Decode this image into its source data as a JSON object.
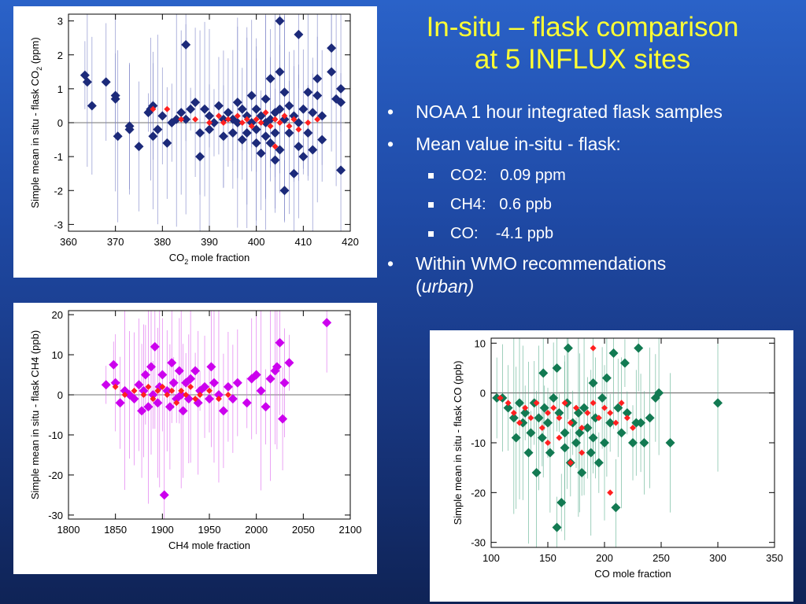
{
  "slide": {
    "title_line1": "In-situ – flask comparison",
    "title_line2": "at 5 INFLUX sites",
    "bullets": [
      "NOAA 1 hour integrated flask samples",
      "Mean value in-situ - flask:"
    ],
    "sub_bullets": [
      "CO2:   0.09 ppm",
      "CH4:   0.6 ppb",
      "CO:    -4.1 ppb"
    ],
    "bullet3": "Within WMO recommendations",
    "bullet3_italic": "urban)",
    "bullet3_paren": "(",
    "title_color": "#ffff33"
  },
  "chart_data": [
    {
      "type": "scatter",
      "ylabel_prefix": "Simple mean in situ - flask CO",
      "ylabel_sub": "2",
      "ylabel_suffix": " (ppm)",
      "xlabel_prefix": "CO",
      "xlabel_sub": "2",
      "xlabel_suffix": " mole fraction",
      "xlim": [
        360,
        420
      ],
      "ylim": [
        -3.2,
        3.2
      ],
      "xticks": [
        360,
        370,
        380,
        390,
        400,
        410,
        420
      ],
      "yticks": [
        -3,
        -2,
        -1,
        0,
        1,
        2,
        3
      ],
      "zero_line": true,
      "colors": {
        "marker": "#1c2a7a",
        "highlight": "#ff2020",
        "errorbar": "#7d84c8"
      },
      "points": [
        [
          363.5,
          1.4
        ],
        [
          364,
          1.2
        ],
        [
          365,
          0.5
        ],
        [
          368,
          1.2
        ],
        [
          370,
          0.8
        ],
        [
          370,
          0.7
        ],
        [
          370.5,
          -0.4
        ],
        [
          373,
          -0.1
        ],
        [
          373,
          -0.2
        ],
        [
          375,
          -0.7
        ],
        [
          377,
          0.3
        ],
        [
          377.5,
          0.4
        ],
        [
          378,
          -0.4
        ],
        [
          378,
          0.5
        ],
        [
          379,
          -0.2
        ],
        [
          380,
          0.2
        ],
        [
          381,
          -0.6
        ],
        [
          382,
          0
        ],
        [
          383,
          0.1
        ],
        [
          384,
          0.3
        ],
        [
          385,
          2.3
        ],
        [
          385,
          0.1
        ],
        [
          386,
          0.4
        ],
        [
          387,
          0.6
        ],
        [
          388,
          -0.3
        ],
        [
          388,
          -1
        ],
        [
          389,
          0.4
        ],
        [
          390,
          0.2
        ],
        [
          390,
          -0.2
        ],
        [
          391,
          0
        ],
        [
          392,
          0.5
        ],
        [
          393,
          0.1
        ],
        [
          393,
          -0.4
        ],
        [
          394,
          0.3
        ],
        [
          395,
          0.1
        ],
        [
          395,
          -0.3
        ],
        [
          396,
          0.6
        ],
        [
          396,
          0
        ],
        [
          397,
          -0.5
        ],
        [
          397,
          0.4
        ],
        [
          398,
          0.2
        ],
        [
          398,
          -0.3
        ],
        [
          399,
          0.8
        ],
        [
          399,
          0
        ],
        [
          400,
          0.4
        ],
        [
          400,
          -0.2
        ],
        [
          400,
          -0.6
        ],
        [
          401,
          0.2
        ],
        [
          401,
          -0.9
        ],
        [
          402,
          0
        ],
        [
          402,
          0.7
        ],
        [
          402,
          -0.4
        ],
        [
          403,
          1.3
        ],
        [
          403,
          0.1
        ],
        [
          403,
          -0.6
        ],
        [
          404,
          0.3
        ],
        [
          404,
          -0.3
        ],
        [
          404,
          -1.1
        ],
        [
          405,
          3
        ],
        [
          405,
          1.5
        ],
        [
          405,
          0.4
        ],
        [
          405,
          -0.8
        ],
        [
          406,
          0.1
        ],
        [
          406,
          0.9
        ],
        [
          406,
          -2
        ],
        [
          407,
          -0.3
        ],
        [
          407,
          0.5
        ],
        [
          408,
          -1.5
        ],
        [
          408,
          0.2
        ],
        [
          409,
          2.6
        ],
        [
          409,
          -0.7
        ],
        [
          409,
          0
        ],
        [
          410,
          0.4
        ],
        [
          410,
          -1
        ],
        [
          411,
          0.9
        ],
        [
          411,
          -0.3
        ],
        [
          412,
          0.3
        ],
        [
          412,
          -0.8
        ],
        [
          413,
          0.8
        ],
        [
          413,
          1.3
        ],
        [
          414,
          -0.5
        ],
        [
          414,
          0.2
        ],
        [
          416,
          2.2
        ],
        [
          416,
          1.5
        ],
        [
          417,
          0.7
        ],
        [
          418,
          1
        ],
        [
          418,
          -1.4
        ],
        [
          418,
          0.6
        ]
      ],
      "highlights": [
        [
          378,
          0.4
        ],
        [
          381,
          0.4
        ],
        [
          384,
          0.1
        ],
        [
          387,
          0.1
        ],
        [
          390,
          0
        ],
        [
          392,
          0.2
        ],
        [
          394,
          0.1
        ],
        [
          396,
          0.2
        ],
        [
          398,
          0.1
        ],
        [
          399,
          -0.1
        ],
        [
          400,
          0.1
        ],
        [
          401,
          0
        ],
        [
          402,
          0.3
        ],
        [
          403,
          -0.1
        ],
        [
          404,
          0.1
        ],
        [
          404,
          -0.7
        ],
        [
          405,
          0
        ],
        [
          406,
          0.2
        ],
        [
          407,
          -0.1
        ],
        [
          408,
          0.1
        ],
        [
          409,
          -0.2
        ],
        [
          411,
          0
        ],
        [
          413,
          0.1
        ],
        [
          393,
          0
        ],
        [
          397,
          0
        ]
      ]
    },
    {
      "type": "scatter",
      "ylabel": "Simple mean in situ - flask CH4 (ppb)",
      "xlabel": "CH4 mole fraction",
      "xlim": [
        1800,
        2100
      ],
      "ylim": [
        -31,
        21
      ],
      "xticks": [
        1800,
        1850,
        1900,
        1950,
        2000,
        2050,
        2100
      ],
      "yticks": [
        -30,
        -20,
        -10,
        0,
        10,
        20
      ],
      "zero_line": true,
      "colors": {
        "marker": "#cc00ee",
        "highlight": "#ff2020",
        "errorbar": "#dd66ee"
      },
      "points": [
        [
          1840,
          2.5
        ],
        [
          1848,
          7.5
        ],
        [
          1850,
          3
        ],
        [
          1855,
          -2
        ],
        [
          1860,
          1
        ],
        [
          1865,
          0
        ],
        [
          1870,
          -1
        ],
        [
          1875,
          2.5
        ],
        [
          1878,
          -4
        ],
        [
          1880,
          1
        ],
        [
          1882,
          5
        ],
        [
          1885,
          -3
        ],
        [
          1888,
          7
        ],
        [
          1890,
          0
        ],
        [
          1892,
          12
        ],
        [
          1895,
          -2
        ],
        [
          1897,
          2
        ],
        [
          1900,
          5
        ],
        [
          1902,
          -25
        ],
        [
          1905,
          1
        ],
        [
          1908,
          -3
        ],
        [
          1910,
          8
        ],
        [
          1912,
          3
        ],
        [
          1915,
          -1
        ],
        [
          1918,
          6
        ],
        [
          1920,
          0
        ],
        [
          1922,
          -4
        ],
        [
          1925,
          3
        ],
        [
          1928,
          -1
        ],
        [
          1930,
          4
        ],
        [
          1935,
          6
        ],
        [
          1938,
          -2
        ],
        [
          1940,
          1
        ],
        [
          1945,
          2
        ],
        [
          1950,
          -1
        ],
        [
          1952,
          7
        ],
        [
          1955,
          3
        ],
        [
          1960,
          0
        ],
        [
          1965,
          -4
        ],
        [
          1970,
          2
        ],
        [
          1975,
          -1
        ],
        [
          1980,
          3
        ],
        [
          1990,
          -2
        ],
        [
          1995,
          4
        ],
        [
          2000,
          5
        ],
        [
          2005,
          1
        ],
        [
          2010,
          -3
        ],
        [
          2015,
          4
        ],
        [
          2020,
          6
        ],
        [
          2022,
          7
        ],
        [
          2025,
          13
        ],
        [
          2028,
          -6
        ],
        [
          2030,
          3
        ],
        [
          2035,
          8
        ],
        [
          2075,
          18
        ]
      ],
      "highlights": [
        [
          1850,
          2
        ],
        [
          1860,
          0
        ],
        [
          1870,
          1
        ],
        [
          1880,
          0
        ],
        [
          1885,
          2
        ],
        [
          1890,
          -1
        ],
        [
          1895,
          1
        ],
        [
          1900,
          2
        ],
        [
          1905,
          0
        ],
        [
          1910,
          1
        ],
        [
          1915,
          -2
        ],
        [
          1920,
          1
        ],
        [
          1925,
          0
        ],
        [
          1930,
          2
        ],
        [
          1935,
          -1
        ],
        [
          1940,
          0
        ],
        [
          1950,
          1
        ],
        [
          1960,
          -1
        ],
        [
          1970,
          0
        ]
      ]
    },
    {
      "type": "scatter",
      "ylabel": "Simple mean in situ - flask CO (ppb)",
      "xlabel": "CO mole fraction",
      "xlim": [
        100,
        350
      ],
      "ylim": [
        -31,
        11
      ],
      "xticks": [
        100,
        150,
        200,
        250,
        300,
        350
      ],
      "yticks": [
        -30,
        -20,
        -10,
        0,
        10
      ],
      "zero_line": true,
      "colors": {
        "marker": "#127a52",
        "highlight": "#ff2020",
        "errorbar": "#5fb191"
      },
      "points": [
        [
          105,
          -1
        ],
        [
          110,
          -1
        ],
        [
          115,
          -3
        ],
        [
          120,
          -5
        ],
        [
          122,
          -9
        ],
        [
          125,
          -2
        ],
        [
          128,
          -6
        ],
        [
          130,
          -4
        ],
        [
          133,
          -12
        ],
        [
          135,
          -8
        ],
        [
          138,
          -2
        ],
        [
          140,
          -16
        ],
        [
          142,
          -5
        ],
        [
          145,
          -9
        ],
        [
          147,
          -3
        ],
        [
          150,
          -6
        ],
        [
          152,
          -12
        ],
        [
          155,
          -1
        ],
        [
          158,
          -27
        ],
        [
          160,
          -4
        ],
        [
          162,
          -22
        ],
        [
          165,
          -8
        ],
        [
          167,
          -2
        ],
        [
          170,
          -14
        ],
        [
          172,
          -6
        ],
        [
          175,
          -10
        ],
        [
          177,
          -4
        ],
        [
          180,
          -16
        ],
        [
          182,
          -3
        ],
        [
          185,
          -7
        ],
        [
          188,
          -12
        ],
        [
          190,
          2
        ],
        [
          192,
          -5
        ],
        [
          195,
          -14
        ],
        [
          198,
          -1
        ],
        [
          200,
          -10
        ],
        [
          202,
          3
        ],
        [
          205,
          -6
        ],
        [
          208,
          8
        ],
        [
          210,
          -23
        ],
        [
          212,
          -3
        ],
        [
          215,
          -8
        ],
        [
          218,
          6
        ],
        [
          220,
          -4
        ],
        [
          225,
          -10
        ],
        [
          228,
          -6
        ],
        [
          230,
          9
        ],
        [
          232,
          -6
        ],
        [
          235,
          -10
        ],
        [
          240,
          -5
        ],
        [
          245,
          -1
        ],
        [
          248,
          0
        ],
        [
          258,
          -10
        ],
        [
          300,
          -2
        ],
        [
          165,
          -11
        ],
        [
          178,
          -8
        ],
        [
          190,
          -9
        ],
        [
          168,
          9
        ],
        [
          158,
          5
        ],
        [
          146,
          4
        ]
      ],
      "highlights": [
        [
          108,
          -1
        ],
        [
          115,
          -2
        ],
        [
          120,
          -4
        ],
        [
          125,
          -6
        ],
        [
          130,
          -3
        ],
        [
          135,
          -5
        ],
        [
          140,
          -2
        ],
        [
          145,
          -7
        ],
        [
          150,
          -4
        ],
        [
          155,
          -3
        ],
        [
          160,
          -5
        ],
        [
          165,
          -2
        ],
        [
          170,
          -6
        ],
        [
          175,
          -3
        ],
        [
          180,
          -7
        ],
        [
          185,
          -4
        ],
        [
          190,
          -2
        ],
        [
          195,
          -5
        ],
        [
          200,
          -3
        ],
        [
          205,
          -4
        ],
        [
          210,
          -6
        ],
        [
          215,
          -2
        ],
        [
          220,
          -5
        ],
        [
          225,
          -7
        ],
        [
          150,
          -10
        ],
        [
          160,
          -9
        ],
        [
          170,
          -14
        ],
        [
          180,
          -12
        ],
        [
          190,
          9
        ],
        [
          205,
          -20
        ]
      ]
    }
  ]
}
